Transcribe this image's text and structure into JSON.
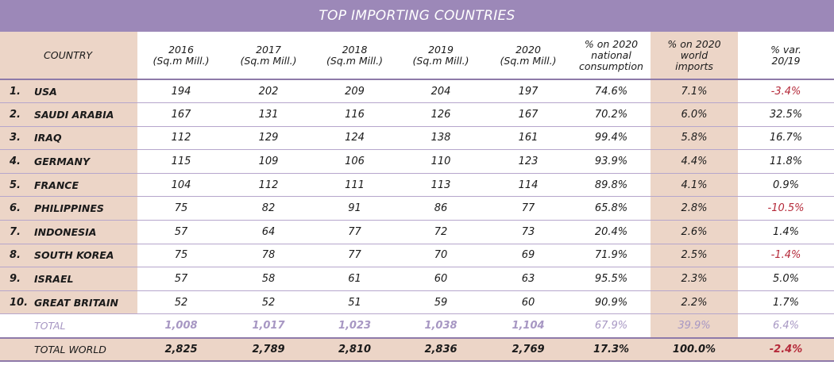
{
  "title": "TOP IMPORTING COUNTRIES",
  "colors": {
    "header": "#9c88b8",
    "shade": "#ecd5c7",
    "negative": "#b52a3a",
    "total_text": "#a797c3"
  },
  "chart_data": {
    "type": "table",
    "title": "TOP IMPORTING COUNTRIES",
    "columns": [
      {
        "line1": "COUNTRY",
        "line2": "",
        "line3": ""
      },
      {
        "line1": "2016",
        "line2": "(Sq.m Mill.)",
        "line3": ""
      },
      {
        "line1": "2017",
        "line2": "(Sq.m Mill.)",
        "line3": ""
      },
      {
        "line1": "2018",
        "line2": "(Sq.m Mill.)",
        "line3": ""
      },
      {
        "line1": "2019",
        "line2": "(Sq.m Mill.)",
        "line3": ""
      },
      {
        "line1": "2020",
        "line2": "(Sq.m Mill.)",
        "line3": ""
      },
      {
        "line1": "% on 2020",
        "line2": "national",
        "line3": "consumption"
      },
      {
        "line1": "% on 2020",
        "line2": "world",
        "line3": "imports"
      },
      {
        "line1": "% var.",
        "line2": "20/19",
        "line3": ""
      }
    ],
    "rows": [
      {
        "rank": "1.",
        "country": "USA",
        "values": [
          "194",
          "202",
          "209",
          "204",
          "197",
          "74.6%",
          "7.1%",
          "-3.4%"
        ]
      },
      {
        "rank": "2.",
        "country": "SAUDI ARABIA",
        "values": [
          "167",
          "131",
          "116",
          "126",
          "167",
          "70.2%",
          "6.0%",
          "32.5%"
        ]
      },
      {
        "rank": "3.",
        "country": "IRAQ",
        "values": [
          "112",
          "129",
          "124",
          "138",
          "161",
          "99.4%",
          "5.8%",
          "16.7%"
        ]
      },
      {
        "rank": "4.",
        "country": "GERMANY",
        "values": [
          "115",
          "109",
          "106",
          "110",
          "123",
          "93.9%",
          "4.4%",
          "11.8%"
        ]
      },
      {
        "rank": "5.",
        "country": "FRANCE",
        "values": [
          "104",
          "112",
          "111",
          "113",
          "114",
          "89.8%",
          "4.1%",
          "0.9%"
        ]
      },
      {
        "rank": "6.",
        "country": "PHILIPPINES",
        "values": [
          "75",
          "82",
          "91",
          "86",
          "77",
          "65.8%",
          "2.8%",
          "-10.5%"
        ]
      },
      {
        "rank": "7.",
        "country": "INDONESIA",
        "values": [
          "57",
          "64",
          "77",
          "72",
          "73",
          "20.4%",
          "2.6%",
          "1.4%"
        ]
      },
      {
        "rank": "8.",
        "country": "SOUTH KOREA",
        "values": [
          "75",
          "78",
          "77",
          "70",
          "69",
          "71.9%",
          "2.5%",
          "-1.4%"
        ]
      },
      {
        "rank": "9.",
        "country": "ISRAEL",
        "values": [
          "57",
          "58",
          "61",
          "60",
          "63",
          "95.5%",
          "2.3%",
          "5.0%"
        ]
      },
      {
        "rank": "10.",
        "country": "GREAT BRITAIN",
        "values": [
          "52",
          "52",
          "51",
          "59",
          "60",
          "90.9%",
          "2.2%",
          "1.7%"
        ]
      }
    ],
    "total": {
      "label": "TOTAL",
      "values": [
        "1,008",
        "1,017",
        "1,023",
        "1,038",
        "1,104",
        "67.9%",
        "39.9%",
        "6.4%"
      ]
    },
    "total_world": {
      "label": "TOTAL WORLD",
      "values": [
        "2,825",
        "2,789",
        "2,810",
        "2,836",
        "2,769",
        "17.3%",
        "100.0%",
        "-2.4%"
      ]
    }
  }
}
